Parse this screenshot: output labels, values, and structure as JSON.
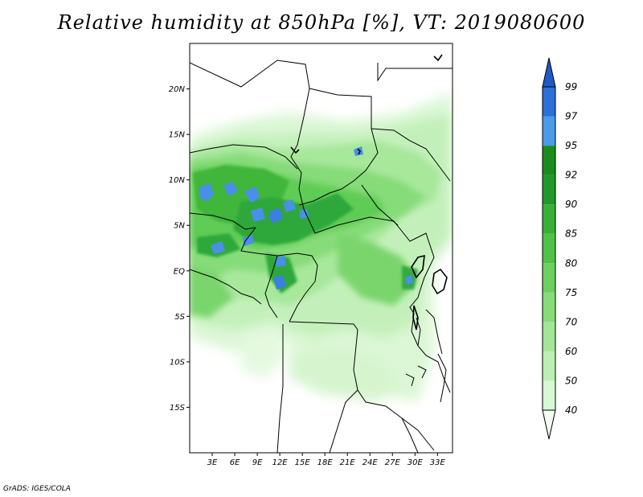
{
  "title": "Relative humidity at 850hPa [%], VT: 2019080600",
  "credit": "GrADS: IGES/COLA",
  "map": {
    "lat_labels": [
      {
        "value": 20,
        "label": "20N"
      },
      {
        "value": 15,
        "label": "15N"
      },
      {
        "value": 10,
        "label": "10N"
      },
      {
        "value": 5,
        "label": "5N"
      },
      {
        "value": 0,
        "label": "EQ"
      },
      {
        "value": -5,
        "label": "5S"
      },
      {
        "value": -10,
        "label": "10S"
      },
      {
        "value": -15,
        "label": "15S"
      }
    ],
    "lon_labels": [
      {
        "value": 3,
        "label": "3E"
      },
      {
        "value": 6,
        "label": "6E"
      },
      {
        "value": 9,
        "label": "9E"
      },
      {
        "value": 12,
        "label": "12E"
      },
      {
        "value": 15,
        "label": "15E"
      },
      {
        "value": 18,
        "label": "18E"
      },
      {
        "value": 21,
        "label": "21E"
      },
      {
        "value": 24,
        "label": "24E"
      },
      {
        "value": 27,
        "label": "27E"
      },
      {
        "value": 30,
        "label": "30E"
      },
      {
        "value": 33,
        "label": "33E"
      }
    ],
    "lon_range": [
      0,
      35
    ],
    "lat_range": [
      -20,
      25
    ]
  },
  "colorbar": {
    "levels": [
      "40",
      "50",
      "60",
      "70",
      "75",
      "80",
      "85",
      "90",
      "92",
      "95",
      "97",
      "99"
    ],
    "colors": [
      "#f2fff0",
      "#d8f8d3",
      "#bdefb5",
      "#a2e696",
      "#87dc79",
      "#6bd05e",
      "#4fc345",
      "#37b036",
      "#1f992a",
      "#1a8c1e",
      "#4a9be8",
      "#2a70d8",
      "#1e5ac8"
    ]
  }
}
